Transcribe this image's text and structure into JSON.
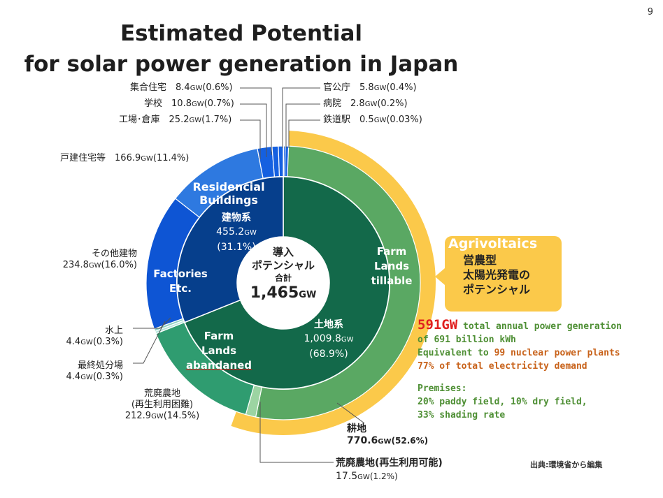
{
  "page_number": "9",
  "title_line1": "Estimated Potential",
  "title_line2": "for solar power generation in Japan",
  "center": {
    "line1": "導入",
    "line2": "ポテンシャル",
    "line3": "合計",
    "total": "1,465",
    "unit": "GW"
  },
  "inner_labels": {
    "building": {
      "en1": "Residencial",
      "en2": "Buildings",
      "jp": "建物系",
      "value": "455.2",
      "unit": "GW",
      "pct": "(31.1%)"
    },
    "land": {
      "jp": "土地系",
      "value": "1,009.8",
      "unit": "GW",
      "pct": "(68.9%)"
    },
    "factories": {
      "line1": "Factories",
      "line2": "Etc."
    },
    "farm_tillable": {
      "line1": "Farm",
      "line2": "Lands",
      "line3": "tillable"
    },
    "farm_abandoned": {
      "line1": "Farm",
      "line2": "Lands",
      "line3": "abandaned"
    }
  },
  "outer_labels": {
    "shugo": {
      "name": "集合住宅",
      "value": "8.4",
      "unit": "GW",
      "pct": "(0.6%)"
    },
    "gakko": {
      "name": "学校",
      "value": "10.8",
      "unit": "GW",
      "pct": "(0.7%)"
    },
    "kojo": {
      "name": "工場･倉庫",
      "value": "25.2",
      "unit": "GW",
      "pct": "(1.7%)"
    },
    "kocho": {
      "name": "官公庁",
      "value": "5.8",
      "unit": "GW",
      "pct": "(0.4%)"
    },
    "byoin": {
      "name": "病院",
      "value": "2.8",
      "unit": "GW",
      "pct": "(0.2%)"
    },
    "tetsudo": {
      "name": "鉄道駅",
      "value": "0.5",
      "unit": "GW",
      "pct": "(0.03%)"
    },
    "kodate": {
      "name": "戸建住宅等",
      "value": "166.9",
      "unit": "GW",
      "pct": "(11.4%)"
    },
    "sonota": {
      "name": "その他建物",
      "value": "234.8",
      "unit": "GW",
      "pct": "(16.0%)"
    },
    "suijo": {
      "name": "水上",
      "value": "4.4",
      "unit": "GW",
      "pct": "(0.3%)"
    },
    "saishu": {
      "name": "最終処分場",
      "value": "4.4",
      "unit": "GW",
      "pct": "(0.3%)"
    },
    "kohai_konnan": {
      "name1": "荒廃農地",
      "name2": "(再生利用困難)",
      "value": "212.9",
      "unit": "GW",
      "pct": "(14.5%)"
    },
    "kochi": {
      "name": "耕地",
      "value": "770.6",
      "unit": "GW",
      "pct": "(52.6%)"
    },
    "kohai_kano": {
      "name": "荒廃農地(再生利用可能)",
      "value": "17.5",
      "unit": "GW",
      "pct": "(1.2%)"
    }
  },
  "callout": {
    "head": "Agrivoltaics",
    "line1": "営農型",
    "line2": "太陽光発電の",
    "line3": "ポテンシャル"
  },
  "notes": {
    "big": "591GW",
    "line1": " total annual power generation",
    "line2": " of 691 billion kWh",
    "line3a": "Equivalent to ",
    "line3b": "99 nuclear power plants",
    "line4": "77% of total electricity demand",
    "premises": "Premises:",
    "prem1": "20% paddy field, 10% dry field,",
    "prem2": "33% shading rate"
  },
  "source": "出典:環境省から編集",
  "colors": {
    "building_inner": "#063f8c",
    "land_inner": "#13694a",
    "kodate": "#2e79e0",
    "sonota": "#0e55d4",
    "small_blue": "#1560e0",
    "kochi": "#5aa863",
    "kohai_kano": "#9cd4a2",
    "kohai_konnan": "#2f9c70",
    "suijo": "#8fd0c0",
    "saishu": "#b8e6dc",
    "agri": "#fbc94a"
  },
  "chart_data": {
    "type": "pie",
    "total": 1465,
    "inner": [
      {
        "label": "建物系",
        "value": 455.2,
        "pct": 31.1
      },
      {
        "label": "土地系",
        "value": 1009.8,
        "pct": 68.9
      }
    ],
    "outer": [
      {
        "label": "鉄道駅",
        "value": 0.5,
        "pct": 0.03
      },
      {
        "label": "病院",
        "value": 2.8,
        "pct": 0.2
      },
      {
        "label": "官公庁",
        "value": 5.8,
        "pct": 0.4
      },
      {
        "label": "耕地",
        "value": 770.6,
        "pct": 52.6
      },
      {
        "label": "荒廃農地(再生利用可能)",
        "value": 17.5,
        "pct": 1.2
      },
      {
        "label": "荒廃農地(再生利用困難)",
        "value": 212.9,
        "pct": 14.5
      },
      {
        "label": "最終処分場",
        "value": 4.4,
        "pct": 0.3
      },
      {
        "label": "水上",
        "value": 4.4,
        "pct": 0.3
      },
      {
        "label": "その他建物",
        "value": 234.8,
        "pct": 16.0
      },
      {
        "label": "戸建住宅等",
        "value": 166.9,
        "pct": 11.4
      },
      {
        "label": "工場･倉庫",
        "value": 25.2,
        "pct": 1.7
      },
      {
        "label": "学校",
        "value": 10.8,
        "pct": 0.7
      },
      {
        "label": "集合住宅",
        "value": 8.4,
        "pct": 0.6
      }
    ],
    "highlight": {
      "label": "Agrivoltaics",
      "value": 591
    }
  }
}
